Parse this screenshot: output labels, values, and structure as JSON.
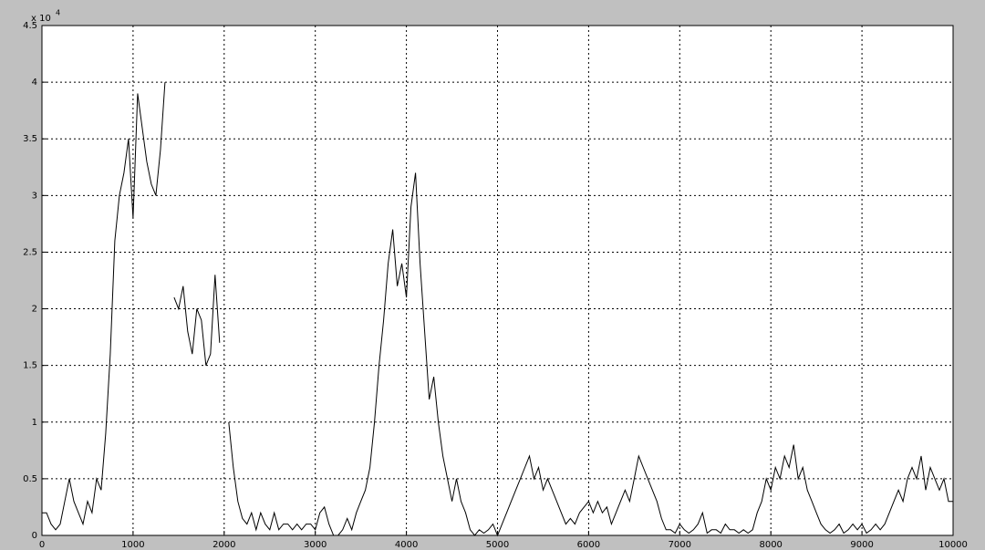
{
  "chart_data": {
    "type": "line",
    "y_exponent_base": "x 10",
    "y_exponent": "4",
    "x": [
      0,
      50,
      100,
      150,
      200,
      250,
      300,
      350,
      400,
      450,
      500,
      550,
      600,
      650,
      700,
      750,
      800,
      850,
      900,
      950,
      1000,
      1050,
      1100,
      1150,
      1200,
      1250,
      1300,
      1350,
      1400,
      1450,
      1500,
      1550,
      1600,
      1650,
      1700,
      1750,
      1800,
      1850,
      1900,
      1950,
      2000,
      2050,
      2100,
      2150,
      2200,
      2250,
      2300,
      2350,
      2400,
      2450,
      2500,
      2550,
      2600,
      2650,
      2700,
      2750,
      2800,
      2850,
      2900,
      2950,
      3000,
      3050,
      3100,
      3150,
      3200,
      3250,
      3300,
      3350,
      3400,
      3450,
      3500,
      3550,
      3600,
      3650,
      3700,
      3750,
      3800,
      3850,
      3900,
      3950,
      4000,
      4050,
      4100,
      4150,
      4200,
      4250,
      4300,
      4350,
      4400,
      4450,
      4500,
      4550,
      4600,
      4650,
      4700,
      4750,
      4800,
      4850,
      4900,
      4950,
      5000,
      5050,
      5100,
      5150,
      5200,
      5250,
      5300,
      5350,
      5400,
      5450,
      5500,
      5550,
      5600,
      5650,
      5700,
      5750,
      5800,
      5850,
      5900,
      5950,
      6000,
      6050,
      6100,
      6150,
      6200,
      6250,
      6300,
      6350,
      6400,
      6450,
      6500,
      6550,
      6600,
      6650,
      6700,
      6750,
      6800,
      6850,
      6900,
      6950,
      7000,
      7050,
      7100,
      7150,
      7200,
      7250,
      7300,
      7350,
      7400,
      7450,
      7500,
      7550,
      7600,
      7650,
      7700,
      7750,
      7800,
      7850,
      7900,
      7950,
      8000,
      8050,
      8100,
      8150,
      8200,
      8250,
      8300,
      8350,
      8400,
      8450,
      8500,
      8550,
      8600,
      8650,
      8700,
      8750,
      8800,
      8850,
      8900,
      8950,
      9000,
      9050,
      9100,
      9150,
      9200,
      9250,
      9300,
      9350,
      9400,
      9450,
      9500,
      9550,
      9600,
      9650,
      9700,
      9750,
      9800,
      9850,
      9900,
      9950,
      10000
    ],
    "series": [
      {
        "color": "#000000",
        "values": [
          0.2,
          0.2,
          0.1,
          0.05,
          0.1,
          0.3,
          0.5,
          0.3,
          0.2,
          0.1,
          0.3,
          0.2,
          0.5,
          0.4,
          0.9,
          1.6,
          2.6,
          3.0,
          3.2,
          3.5,
          2.8,
          3.9,
          3.6,
          3.3,
          3.1,
          3.0,
          3.4,
          4.0,
          null,
          2.1,
          2.0,
          2.2,
          1.8,
          1.6,
          2.0,
          1.9,
          1.5,
          1.6,
          2.3,
          1.7,
          null,
          1.0,
          0.6,
          0.3,
          0.15,
          0.1,
          0.2,
          0.05,
          0.2,
          0.1,
          0.05,
          0.2,
          0.05,
          0.1,
          0.1,
          0.05,
          0.1,
          0.05,
          0.1,
          0.1,
          0.05,
          0.2,
          0.25,
          0.1,
          0,
          0,
          0.05,
          0.15,
          0.05,
          0.2,
          0.3,
          0.4,
          0.6,
          1.0,
          1.5,
          1.9,
          2.4,
          2.7,
          2.2,
          2.4,
          2.1,
          2.9,
          3.2,
          2.4,
          1.8,
          1.2,
          1.4,
          1.0,
          0.7,
          0.5,
          0.3,
          0.5,
          0.3,
          0.2,
          0.05,
          0,
          0.05,
          0.02,
          0.05,
          0.1,
          0,
          0.1,
          0.2,
          0.3,
          0.4,
          0.5,
          0.6,
          0.7,
          0.5,
          0.6,
          0.4,
          0.5,
          0.4,
          0.3,
          0.2,
          0.1,
          0.15,
          0.1,
          0.2,
          0.25,
          0.3,
          0.2,
          0.3,
          0.2,
          0.25,
          0.1,
          0.2,
          0.3,
          0.4,
          0.3,
          0.5,
          0.7,
          0.6,
          0.5,
          0.4,
          0.3,
          0.15,
          0.05,
          0.05,
          0.02,
          0.1,
          0.05,
          0.02,
          0.05,
          0.1,
          0.2,
          0.02,
          0.05,
          0.05,
          0.02,
          0.1,
          0.05,
          0.05,
          0.02,
          0.05,
          0.02,
          0.05,
          0.2,
          0.3,
          0.5,
          0.4,
          0.6,
          0.5,
          0.7,
          0.6,
          0.8,
          0.5,
          0.6,
          0.4,
          0.3,
          0.2,
          0.1,
          0.05,
          0.02,
          0.05,
          0.1,
          0.02,
          0.05,
          0.1,
          0.05,
          0.1,
          0.02,
          0.05,
          0.1,
          0.05,
          0.1,
          0.2,
          0.3,
          0.4,
          0.3,
          0.5,
          0.6,
          0.5,
          0.7,
          0.4,
          0.6,
          0.5,
          0.4,
          0.5,
          0.3,
          0.3
        ]
      }
    ],
    "xlim": [
      0,
      10000
    ],
    "xticks": [
      0,
      1000,
      2000,
      3000,
      4000,
      5000,
      6000,
      7000,
      8000,
      9000,
      10000
    ],
    "ylim": [
      0,
      4.5
    ],
    "yticks": [
      0,
      0.5,
      1,
      1.5,
      2,
      2.5,
      3,
      3.5,
      4,
      4.5
    ],
    "grid": true
  }
}
